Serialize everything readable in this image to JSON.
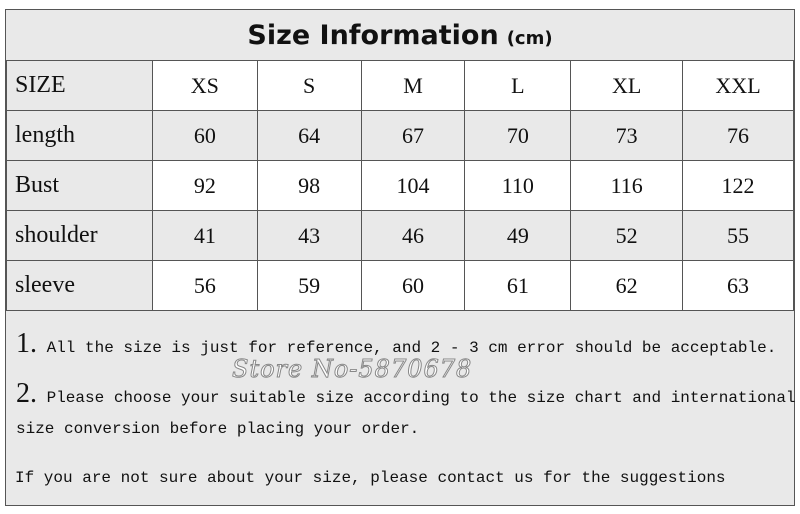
{
  "title": {
    "main": "Size Information",
    "unit": "(cm)"
  },
  "table": {
    "header": [
      "SIZE",
      "XS",
      "S",
      "M",
      "L",
      "XL",
      "XXL"
    ],
    "rows": [
      {
        "label": "length",
        "values": [
          "60",
          "64",
          "67",
          "70",
          "73",
          "76"
        ]
      },
      {
        "label": "Bust",
        "values": [
          "92",
          "98",
          "104",
          "110",
          "116",
          "122"
        ]
      },
      {
        "label": "shoulder",
        "values": [
          "41",
          "43",
          "46",
          "49",
          "52",
          "55"
        ]
      },
      {
        "label": "sleeve",
        "values": [
          "56",
          "59",
          "60",
          "61",
          "62",
          "63"
        ]
      }
    ]
  },
  "notes": {
    "n1_num": "1.",
    "n1": " All the size is just for reference, and 2 - 3 cm error should be acceptable.",
    "n2_num": "2.",
    "n2": " Please choose your suitable size according to the size chart and international",
    "n2b": "size conversion before placing your order.",
    "n3": " If you are not sure about your size, please contact us for the suggestions"
  },
  "watermark": "Store No-5870678"
}
